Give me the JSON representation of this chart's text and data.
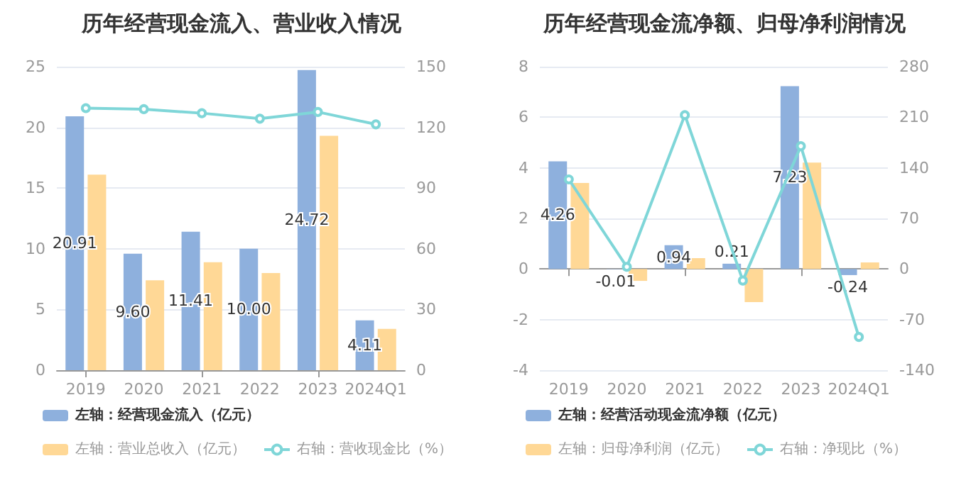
{
  "chart_data": [
    {
      "type": "bar",
      "title": "历年经营现金流入、营业收入情况",
      "categories": [
        "2019",
        "2020",
        "2021",
        "2022",
        "2023",
        "2024Q1"
      ],
      "ylim": [
        0,
        25
      ],
      "yticks": [
        0,
        5,
        10,
        15,
        20,
        25
      ],
      "y2lim": [
        0,
        150
      ],
      "y2ticks": [
        0,
        30,
        60,
        90,
        120,
        150
      ],
      "grid": "y",
      "legend": "bottom left",
      "marker": "circle",
      "series": [
        {
          "name": "左轴：经营现金流入（亿元）",
          "color": "#8eb0dd",
          "values": [
            20.91,
            9.6,
            11.41,
            10.0,
            24.72,
            4.11
          ],
          "value_labels": [
            "20.91",
            "9.60",
            "11.41",
            "10.00",
            "24.72",
            "4.11"
          ]
        },
        {
          "name": "左轴：营业总收入（亿元）",
          "color": "#ffd896",
          "values": [
            16.1,
            7.4,
            8.9,
            8.0,
            19.3,
            3.4
          ]
        },
        {
          "name": "右轴：营收现金比（%）",
          "type": "line",
          "axis": "y2",
          "color": "#7fd6d8",
          "values": [
            129.5,
            129,
            127,
            124.3,
            127.6,
            121.5
          ]
        }
      ]
    },
    {
      "type": "bar",
      "title": "历年经营现金流净额、归母净利润情况",
      "categories": [
        "2019",
        "2020",
        "2021",
        "2022",
        "2023",
        "2024Q1"
      ],
      "ylim": [
        -4,
        8
      ],
      "yticks": [
        -4,
        -2,
        0,
        2,
        4,
        6,
        8
      ],
      "y2lim": [
        -140,
        280
      ],
      "y2ticks": [
        -140,
        -70,
        0,
        70,
        140,
        210,
        280
      ],
      "grid": "y",
      "legend": "bottom left",
      "marker": "circle",
      "series": [
        {
          "name": "左轴：经营活动现金流净额（亿元）",
          "color": "#8eb0dd",
          "values": [
            4.26,
            -0.01,
            0.94,
            0.21,
            7.23,
            -0.24
          ],
          "value_labels": [
            "4.26",
            "-0.01",
            "0.94",
            "0.21",
            "7.23",
            "-0.24"
          ]
        },
        {
          "name": "左轴：归母净利润（亿元）",
          "color": "#ffd896",
          "values": [
            3.4,
            -0.47,
            0.43,
            -1.31,
            4.21,
            0.26
          ]
        },
        {
          "name": "右轴：净现比（%）",
          "type": "line",
          "axis": "y2",
          "color": "#7fd6d8",
          "values": [
            124,
            3,
            213,
            -16,
            170,
            -94
          ]
        }
      ]
    }
  ]
}
